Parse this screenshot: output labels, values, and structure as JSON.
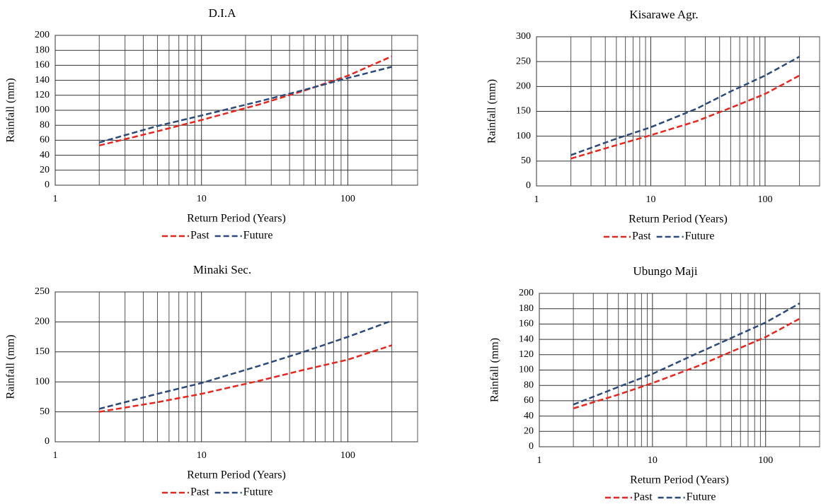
{
  "chart_data": [
    {
      "type": "line",
      "title": "D.I.A",
      "xlabel": "Return Period (Years)",
      "ylabel": "Rainfall  (mm)",
      "xscale": "log",
      "x": [
        2,
        5,
        10,
        25,
        50,
        100,
        200
      ],
      "xlim": [
        1,
        300
      ],
      "xticks": [
        1,
        10,
        100
      ],
      "minor_xgrid": [
        2,
        3,
        4,
        5,
        6,
        7,
        8,
        9,
        20,
        30,
        40,
        50,
        60,
        70,
        80,
        90,
        200,
        300
      ],
      "ylim": [
        0,
        200
      ],
      "yticks": [
        0,
        20,
        40,
        60,
        80,
        100,
        120,
        140,
        160,
        180,
        200
      ],
      "grid": true,
      "legend": "bottom",
      "series": [
        {
          "name": "Past",
          "color": "#e8261e",
          "values": [
            53,
            72,
            87,
            108,
            126,
            146,
            172
          ]
        },
        {
          "name": "Future",
          "color": "#2e4a7a",
          "values": [
            57,
            79,
            93,
            112,
            127,
            143,
            158
          ]
        }
      ]
    },
    {
      "type": "line",
      "title": "Kisarawe Agr.",
      "xlabel": "Return Period (Years)",
      "ylabel": "Rainfall  (mm)",
      "xscale": "log",
      "x": [
        2,
        5,
        10,
        25,
        50,
        100,
        200
      ],
      "xlim": [
        1,
        300
      ],
      "xticks": [
        1,
        10,
        100
      ],
      "minor_xgrid": [
        2,
        3,
        4,
        5,
        6,
        7,
        8,
        9,
        20,
        30,
        40,
        50,
        60,
        70,
        80,
        90,
        200,
        300
      ],
      "ylim": [
        0,
        300
      ],
      "yticks": [
        0,
        50,
        100,
        150,
        200,
        250,
        300
      ],
      "grid": true,
      "legend": "bottom",
      "series": [
        {
          "name": "Past",
          "color": "#e8261e",
          "values": [
            55,
            82,
            102,
            130,
            157,
            185,
            222
          ]
        },
        {
          "name": "Future",
          "color": "#2e4a7a",
          "values": [
            62,
            95,
            118,
            155,
            190,
            222,
            260
          ]
        }
      ]
    },
    {
      "type": "line",
      "title": "Minaki Sec.",
      "xlabel": "Return Period (Years)",
      "ylabel": "Rainfall  (mm)",
      "xscale": "log",
      "x": [
        2,
        5,
        10,
        25,
        50,
        100,
        200
      ],
      "xlim": [
        1,
        300
      ],
      "xticks": [
        1,
        10,
        100
      ],
      "minor_xgrid": [
        2,
        3,
        4,
        5,
        6,
        7,
        8,
        9,
        20,
        30,
        40,
        50,
        60,
        70,
        80,
        90,
        200,
        300
      ],
      "ylim": [
        0,
        250
      ],
      "yticks": [
        0,
        50,
        100,
        150,
        200,
        250
      ],
      "grid": true,
      "legend": "bottom",
      "series": [
        {
          "name": "Past",
          "color": "#e8261e",
          "values": [
            50,
            66,
            80,
            102,
            120,
            137,
            161
          ]
        },
        {
          "name": "Future",
          "color": "#2e4a7a",
          "values": [
            55,
            80,
            98,
            127,
            150,
            175,
            202
          ]
        }
      ]
    },
    {
      "type": "line",
      "title": "Ubungo Maji",
      "xlabel": "Return Period (Years)",
      "ylabel": "Rainfall  (mm)",
      "xscale": "log",
      "x": [
        2,
        5,
        10,
        25,
        50,
        100,
        200
      ],
      "xlim": [
        1,
        300
      ],
      "xticks": [
        1,
        10,
        100
      ],
      "minor_xgrid": [
        2,
        3,
        4,
        5,
        6,
        7,
        8,
        9,
        20,
        30,
        40,
        50,
        60,
        70,
        80,
        90,
        200,
        300
      ],
      "ylim": [
        0,
        200
      ],
      "yticks": [
        0,
        20,
        40,
        60,
        80,
        100,
        120,
        140,
        160,
        180,
        200
      ],
      "grid": true,
      "legend": "bottom",
      "series": [
        {
          "name": "Past",
          "color": "#e8261e",
          "values": [
            50,
            68,
            83,
            105,
            124,
            143,
            167
          ]
        },
        {
          "name": "Future",
          "color": "#2e4a7a",
          "values": [
            55,
            78,
            95,
            122,
            142,
            162,
            187
          ]
        }
      ]
    }
  ]
}
